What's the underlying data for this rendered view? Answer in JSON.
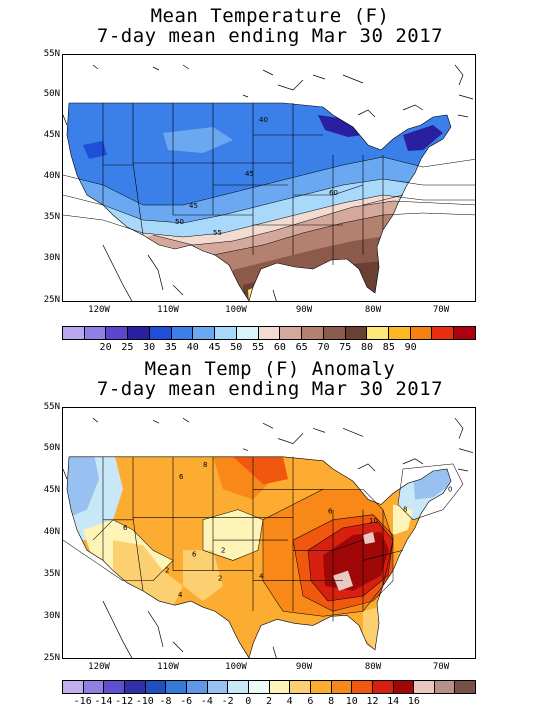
{
  "top": {
    "title_line1": "Mean Temperature (F)",
    "title_line2": "7-day mean ending Mar 30 2017",
    "lat_labels": [
      "55N",
      "50N",
      "45N",
      "40N",
      "35N",
      "30N",
      "25N"
    ],
    "lon_labels": [
      "120W",
      "110W",
      "100W",
      "90W",
      "80W",
      "70W"
    ],
    "contour_labels": [
      "40",
      "45",
      "45",
      "50",
      "55",
      "60"
    ],
    "colorbar_colors": [
      "#b9a8f0",
      "#8f7fe6",
      "#5c45cf",
      "#2a1f9e",
      "#1f4fd8",
      "#3b7fe8",
      "#6aa8f2",
      "#a8d8fa",
      "#d8f4fa",
      "#f2dcd2",
      "#d4a89a",
      "#b48070",
      "#8c5a4a",
      "#6a4034",
      "#fce878",
      "#fcb820",
      "#f88010",
      "#e83010",
      "#b00010"
    ],
    "colorbar_labels": [
      "20",
      "25",
      "30",
      "35",
      "40",
      "45",
      "50",
      "55",
      "60",
      "65",
      "70",
      "75",
      "80",
      "85",
      "90"
    ]
  },
  "bottom": {
    "title_line1": "Mean Temp (F) Anomaly",
    "title_line2": "7-day mean ending Mar 30 2017",
    "lat_labels": [
      "55N",
      "50N",
      "45N",
      "40N",
      "35N",
      "30N",
      "25N"
    ],
    "lon_labels": [
      "120W",
      "110W",
      "100W",
      "90W",
      "80W",
      "70W"
    ],
    "contour_labels": [
      "6",
      "8",
      "6",
      "6",
      "10",
      "2",
      "6",
      "4",
      "2",
      "2",
      "4",
      "0",
      "8"
    ],
    "colorbar_colors": [
      "#c0b0f0",
      "#9080e0",
      "#6050d0",
      "#3030a8",
      "#2050c0",
      "#3878d8",
      "#6098e8",
      "#98c0f0",
      "#c8e8f8",
      "#eefaf8",
      "#fff4b8",
      "#fcd070",
      "#fcac30",
      "#f88818",
      "#f05810",
      "#d82010",
      "#a00808",
      "#e8c8c0",
      "#b89088",
      "#785048"
    ],
    "colorbar_labels": [
      "-16",
      "-14",
      "-12",
      "-10",
      "-8",
      "-6",
      "-4",
      "-2",
      "0",
      "2",
      "4",
      "6",
      "8",
      "10",
      "12",
      "14",
      "16"
    ]
  }
}
